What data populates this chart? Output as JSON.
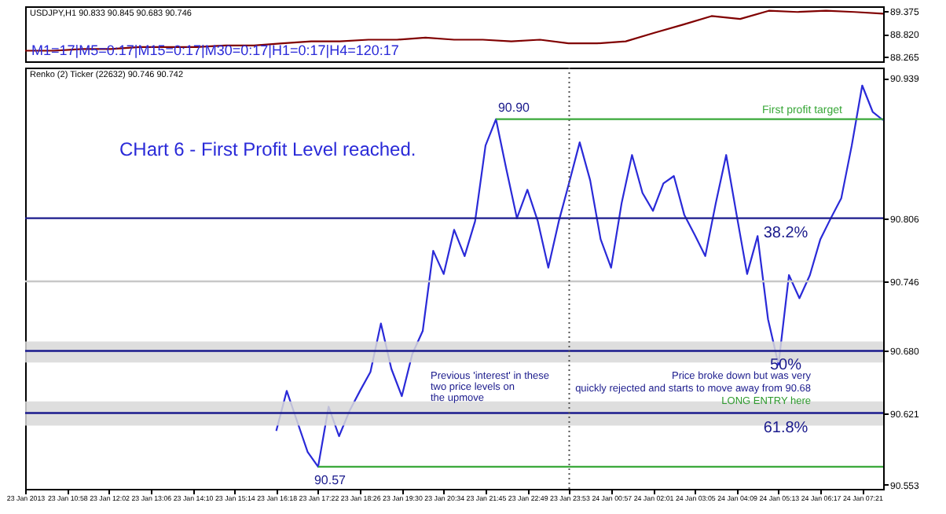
{
  "chart_data": [
    {
      "type": "line",
      "title": "USDJPY,H1 90.833 90.845 90.683 90.746",
      "categories": [
        null,
        null,
        null,
        null,
        null,
        null,
        null,
        null,
        null,
        null,
        null,
        null,
        null,
        null,
        null,
        null,
        null,
        null,
        null,
        null,
        null,
        null,
        null,
        null,
        null,
        null,
        null,
        null,
        null,
        null,
        null
      ],
      "series": [
        {
          "color": "#800000",
          "values": [
            88.41,
            88.41,
            88.45,
            88.45,
            88.5,
            88.5,
            88.5,
            88.54,
            88.54,
            88.59,
            88.64,
            88.64,
            88.68,
            88.68,
            88.73,
            88.68,
            88.68,
            88.64,
            88.68,
            88.59,
            88.59,
            88.64,
            88.85,
            89.05,
            89.26,
            89.19,
            89.39,
            89.36,
            89.39,
            89.36,
            89.32
          ]
        }
      ],
      "ylim": [
        88.15,
        89.5
      ],
      "yticks": [
        89.375,
        {
          "value": 88.82,
          "label": "88.820"
        },
        88.265
      ],
      "annotations": [
        "M1=17|M5=0:17|M15=0:17|M30=0:17|H1=0:17|H4=120:17"
      ],
      "tick_labels": "y"
    },
    {
      "type": "line",
      "title": "Renko (2) Ticker (22632) 90.746 90.742",
      "categories": [
        "23 Jan 2013",
        null,
        null,
        null,
        "23 Jan 10:58",
        null,
        null,
        null,
        "23 Jan 12:02",
        null,
        null,
        null,
        "23 Jan 13:06",
        null,
        null,
        null,
        "23 Jan 14:10",
        null,
        null,
        null,
        "23 Jan 15:14",
        null,
        null,
        null,
        "23 Jan 16:18",
        null,
        null,
        null,
        "23 Jan 17:22",
        null,
        null,
        null,
        "23 Jan 18:26",
        null,
        null,
        null,
        "23 Jan 19:30",
        null,
        null,
        null,
        "23 Jan 20:34",
        null,
        null,
        null,
        "23 Jan 21:45",
        null,
        null,
        null,
        "23 Jan 22:49",
        null,
        null,
        null,
        "23 Jan 23:53",
        null,
        null,
        null,
        "24 Jan 00:57",
        null,
        null,
        null,
        "24 Jan 02:01",
        null,
        null,
        null,
        "24 Jan 03:05",
        null,
        null,
        null,
        "24 Jan 04:09",
        null,
        null,
        null,
        "24 Jan 05:13",
        null,
        null,
        null,
        "24 Jan 06:17",
        null,
        null,
        null,
        "24 Jan 07:21",
        null,
        null
      ],
      "series": [
        {
          "color": "#2a2ad8",
          "values": [
            null,
            null,
            null,
            null,
            null,
            null,
            null,
            null,
            null,
            null,
            null,
            null,
            null,
            null,
            null,
            null,
            null,
            null,
            null,
            null,
            null,
            null,
            null,
            null,
            90.604,
            90.642,
            90.613,
            90.584,
            90.57,
            90.627,
            90.599,
            90.623,
            90.642,
            90.66,
            90.706,
            90.663,
            90.637,
            90.677,
            90.699,
            90.775,
            90.753,
            90.795,
            90.77,
            90.803,
            90.875,
            90.9,
            90.852,
            90.806,
            90.833,
            90.803,
            90.759,
            90.803,
            90.84,
            90.878,
            90.842,
            90.786,
            90.759,
            90.82,
            90.866,
            90.83,
            90.813,
            90.839,
            90.846,
            90.809,
            90.79,
            90.77,
            90.82,
            90.866,
            90.809,
            90.753,
            90.789,
            90.71,
            90.667,
            90.752,
            90.73,
            90.752,
            90.786,
            90.806,
            90.825,
            90.875,
            90.932,
            90.907,
            90.899
          ]
        },
        {
          "type": "line",
          "name": "First profit target",
          "color": "#3aa83a",
          "values": [
            null,
            null,
            null,
            null,
            null,
            null,
            null,
            null,
            null,
            null,
            null,
            null,
            null,
            null,
            null,
            null,
            null,
            null,
            null,
            null,
            null,
            null,
            null,
            null,
            null,
            null,
            null,
            null,
            null,
            null,
            null,
            null,
            null,
            null,
            null,
            null,
            null,
            null,
            null,
            null,
            null,
            null,
            null,
            null,
            null,
            90.9,
            90.9,
            90.9,
            90.9,
            90.9,
            90.9,
            90.9,
            90.9,
            90.9,
            90.9,
            90.9,
            90.9,
            90.9,
            90.9,
            90.9,
            90.9,
            90.9,
            90.9,
            90.9,
            90.9,
            90.9,
            90.9,
            90.9,
            90.9,
            90.9,
            90.9,
            90.9,
            90.9,
            90.9,
            90.9,
            90.9,
            90.9,
            90.9,
            90.9,
            90.9,
            90.9,
            90.9,
            90.9
          ]
        },
        {
          "type": "line",
          "color": "#3aa83a",
          "values": [
            null,
            null,
            null,
            null,
            null,
            null,
            null,
            null,
            null,
            null,
            null,
            null,
            null,
            null,
            null,
            null,
            null,
            null,
            null,
            null,
            null,
            null,
            null,
            null,
            null,
            null,
            null,
            null,
            90.57,
            90.57,
            90.57,
            90.57,
            90.57,
            90.57,
            90.57,
            90.57,
            90.57,
            90.57,
            90.57,
            90.57,
            90.57,
            90.57,
            90.57,
            90.57,
            90.57,
            90.57,
            90.57,
            90.57,
            90.57,
            90.57,
            90.57,
            90.57,
            90.57,
            90.57,
            90.57,
            90.57,
            90.57,
            90.57,
            90.57,
            90.57,
            90.57,
            90.57,
            90.57,
            90.57,
            90.57,
            90.57,
            90.57,
            90.57,
            90.57,
            90.57,
            90.57,
            90.57,
            90.57,
            90.57,
            90.57,
            90.57,
            90.57,
            90.57,
            90.57,
            90.57,
            90.57,
            90.57,
            90.57
          ]
        }
      ],
      "ylim": [
        90.549,
        90.949
      ],
      "yticks": [
        90.939,
        90.806,
        90.746,
        {
          "value": 90.68,
          "label": "90.680"
        },
        90.621,
        90.553
      ],
      "ref_lines": [
        {
          "axis": "y",
          "value": 90.806,
          "color": "#1a1a8c"
        },
        {
          "axis": "y",
          "value": 90.68,
          "color": "#1a1a8c"
        },
        {
          "axis": "y",
          "value": 90.621,
          "color": "#1a1a8c"
        },
        {
          "axis": "y",
          "value": 90.746,
          "color": "#c8c8c8"
        },
        {
          "axis": "x",
          "value": "23 Jan 23:53",
          "color": "#555555",
          "line_style": "dotted"
        }
      ],
      "bands": [
        {
          "axis": "y",
          "from": 90.669,
          "to": 90.689,
          "color": "#d8d8d8"
        },
        {
          "axis": "y",
          "from": 90.609,
          "to": 90.632,
          "color": "#d8d8d8"
        }
      ],
      "annotations": [
        "CHart 6 - First Profit Level reached.",
        "Previous 'interest' in these",
        "two price levels on",
        "the upmove",
        "Price broke down but was very",
        "quickly rejected and starts to move away from 90.68",
        "LONG ENTRY here",
        {
          "text": "90.90",
          "y": 90.9
        },
        {
          "text": "90.57",
          "y": 90.57
        },
        {
          "text": "38.2%",
          "y": 90.806
        },
        {
          "text": "50%",
          "y": 90.68
        },
        {
          "text": "61.8%",
          "y": 90.621
        }
      ]
    }
  ]
}
